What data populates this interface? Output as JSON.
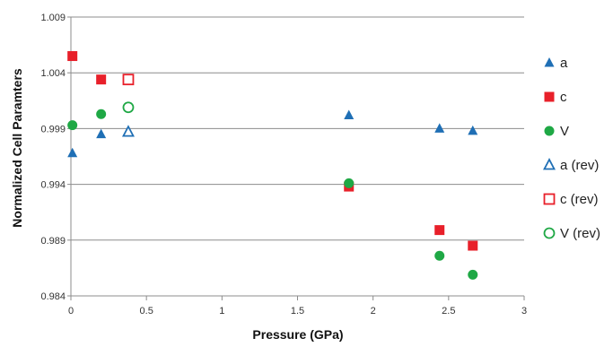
{
  "chart_data": {
    "type": "scatter",
    "title": "",
    "xlabel": "Pressure (GPa)",
    "ylabel": "Normalized Cell Paramters",
    "xlim": [
      0,
      3
    ],
    "ylim": [
      0.984,
      1.009
    ],
    "xticks": [
      "0",
      "0.5",
      "1",
      "1.5",
      "2",
      "2.5",
      "3"
    ],
    "yticks": [
      "0.984",
      "0.989",
      "0.994",
      "0.999",
      "1.004",
      "1.009"
    ],
    "grid": "horizontal",
    "legend_position": "right",
    "series": [
      {
        "name": "a",
        "marker": "triangle",
        "filled": true,
        "color": "#1f6fb5",
        "points": [
          [
            0.01,
            0.9968
          ],
          [
            0.2,
            0.9985
          ],
          [
            1.84,
            1.0002
          ],
          [
            2.44,
            0.999
          ],
          [
            2.66,
            0.9988
          ]
        ]
      },
      {
        "name": "c",
        "marker": "square",
        "filled": true,
        "color": "#e8202a",
        "points": [
          [
            0.01,
            1.0055
          ],
          [
            0.2,
            1.0034
          ],
          [
            1.84,
            0.9938
          ],
          [
            2.44,
            0.9899
          ],
          [
            2.66,
            0.9885
          ]
        ]
      },
      {
        "name": "V",
        "marker": "circle",
        "filled": true,
        "color": "#1fa845",
        "points": [
          [
            0.01,
            0.9993
          ],
          [
            0.2,
            1.0003
          ],
          [
            1.84,
            0.9941
          ],
          [
            2.44,
            0.9876
          ],
          [
            2.66,
            0.9859
          ]
        ]
      },
      {
        "name": "a (rev)",
        "marker": "triangle",
        "filled": false,
        "color": "#1f6fb5",
        "points": [
          [
            0.38,
            0.9987
          ]
        ]
      },
      {
        "name": "c (rev)",
        "marker": "square",
        "filled": false,
        "color": "#e8202a",
        "points": [
          [
            0.38,
            1.0034
          ]
        ]
      },
      {
        "name": "V (rev)",
        "marker": "circle",
        "filled": false,
        "color": "#1fa845",
        "points": [
          [
            0.38,
            1.0009
          ]
        ]
      }
    ]
  }
}
